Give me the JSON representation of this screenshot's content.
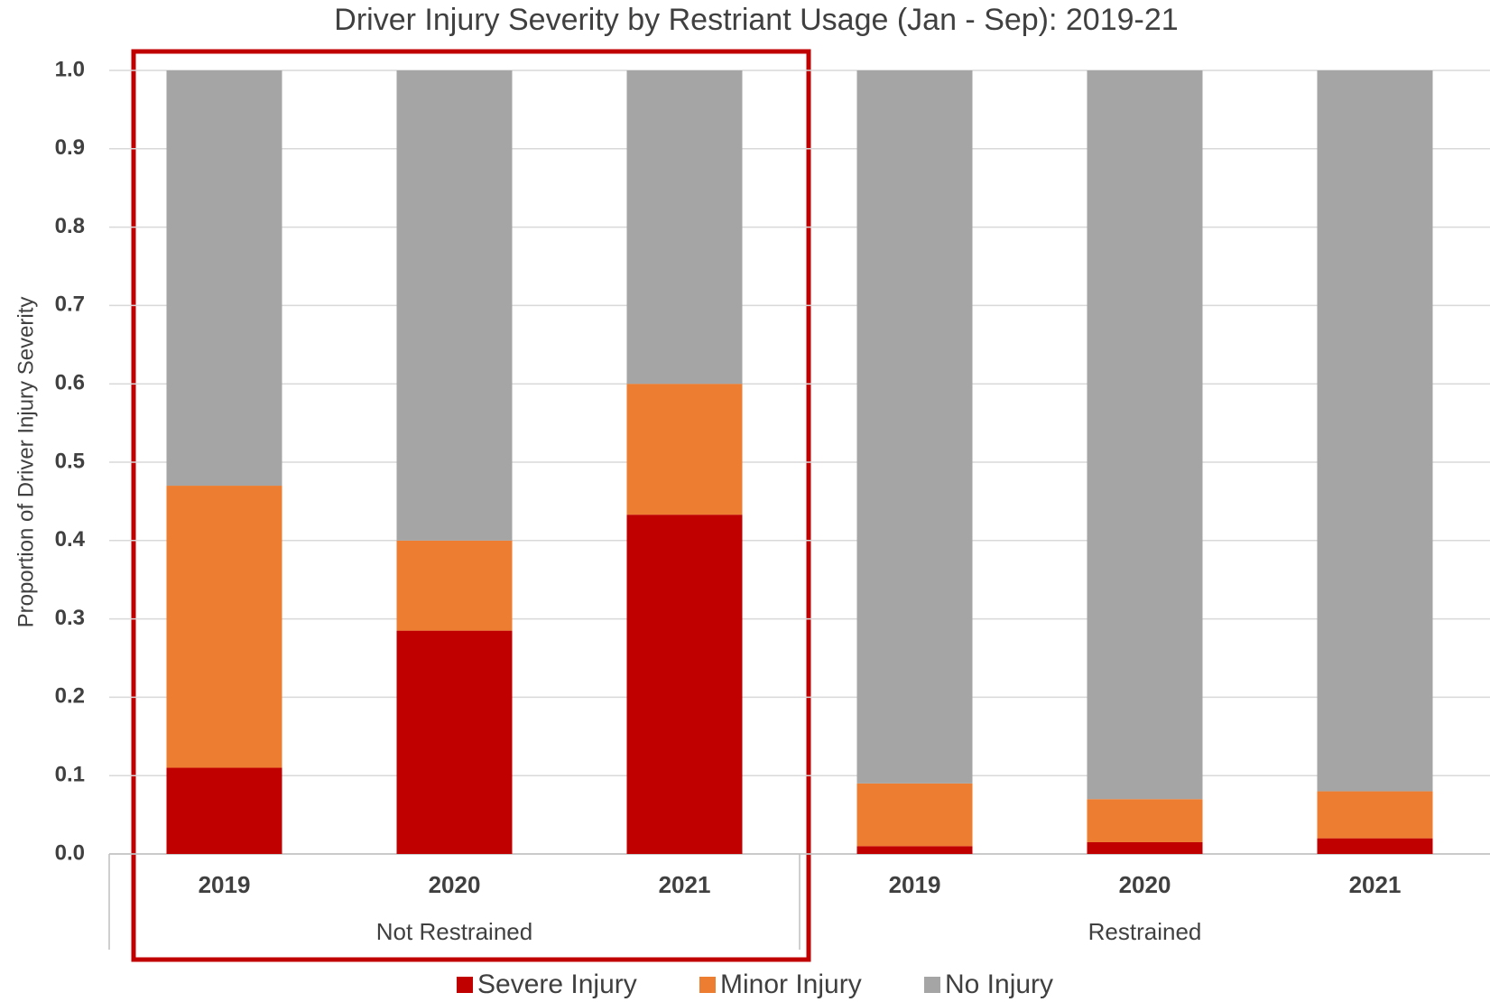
{
  "chart_data": {
    "type": "stacked_bar",
    "title": "Driver Injury Severity by Restriant Usage (Jan - Sep): 2019-21",
    "y_label": "Proportion of Driver Injury Severity",
    "categories": [
      "2019",
      "2020",
      "2021",
      "2019",
      "2020",
      "2021"
    ],
    "groups": [
      "Not Restrained",
      "Restrained"
    ],
    "series": [
      {
        "name": "Severe Injury",
        "color": "#c00000",
        "values": [
          0.11,
          0.285,
          0.433,
          0.01,
          0.015,
          0.02
        ]
      },
      {
        "name": "Minor Injury",
        "color": "#ed7d31",
        "values": [
          0.36,
          0.115,
          0.167,
          0.08,
          0.055,
          0.06
        ]
      },
      {
        "name": "No Injury",
        "color": "#a5a5a5",
        "values": [
          0.53,
          0.6,
          0.4,
          0.91,
          0.93,
          0.92
        ]
      }
    ],
    "ylim": [
      0,
      1
    ],
    "yticks": [
      {
        "value": 0,
        "label": "0.0"
      },
      0.1,
      0.2,
      0.3,
      0.4,
      0.5,
      0.6,
      0.7,
      0.8,
      0.9,
      {
        "value": 1,
        "label": "1.0"
      }
    ],
    "grid": true,
    "legend": "bottom"
  }
}
